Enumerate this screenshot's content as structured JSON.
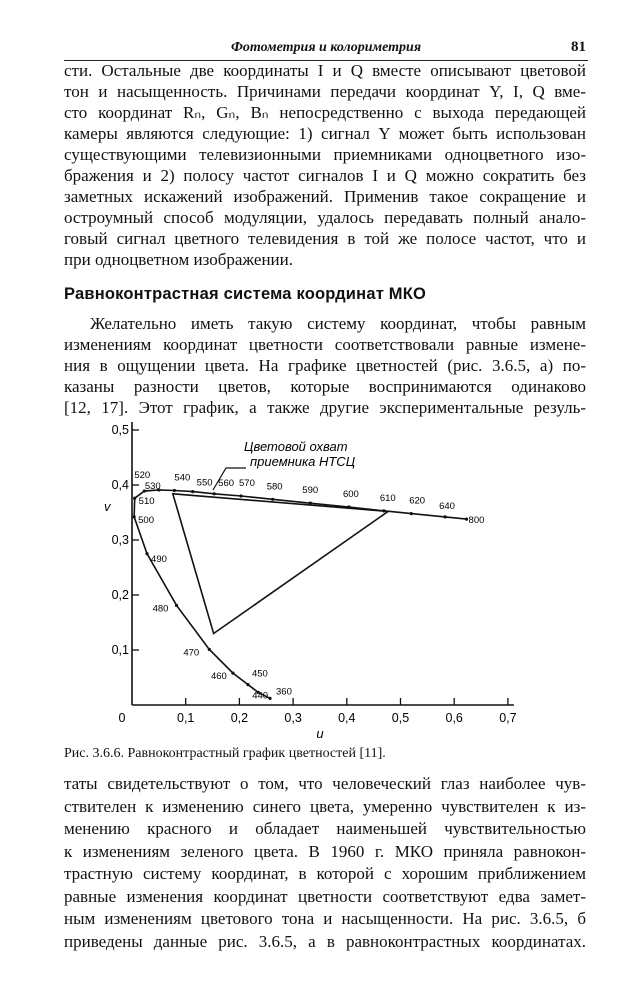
{
  "header": {
    "title": "Фотометрия и колориметрия",
    "page_number": "81"
  },
  "paragraph1": [
    "сти. Остальные две координаты I и Q вместе описывают цветовой",
    "тон и насыщенность. Причинами передачи координат Y, I, Q вме-",
    "сто координат Rₙ, Gₙ, Bₙ непосредственно с выхода передающей",
    "камеры являются следующие: 1) сигнал Y может быть использован",
    "существующими телевизионными приемниками одноцветного изо-",
    "бражения и 2) полосу частот сигналов I и Q можно сократить без",
    "заметных искажений изображений. Применив такое сокращение и",
    "остроумный способ модуляции, удалось передавать полный анало-",
    "говый сигнал цветного телевидения в той же полосе частот, что и",
    "при одноцветном изображении."
  ],
  "section_heading": "Равноконтрастная система координат МКО",
  "paragraph2": [
    "Желательно иметь такую систему координат, чтобы равным",
    "изменениям координат цветности соответствовали равные измене-",
    "ния в ощущении цвета. На графике цветностей (рис. 3.6.5, а) по-",
    "казаны разности цветов, которые воспринимаются одинаково",
    "[12, 17]. Этот график, а также другие экспериментальные резуль-"
  ],
  "chart_data": {
    "type": "line",
    "title": "",
    "xlabel": "u",
    "ylabel": "v",
    "xlim": [
      0,
      0.7
    ],
    "ylim": [
      0,
      0.5
    ],
    "x_ticks": [
      "0",
      "0,1",
      "0,2",
      "0,3",
      "0,4",
      "0,5",
      "0,6",
      "0,7"
    ],
    "y_ticks": [
      "0,1",
      "0,2",
      "0,3",
      "0,4",
      "0,5"
    ],
    "grid": false,
    "annotation": "Цветовой охват приемника НТСЦ",
    "spectral_locus": [
      {
        "nm": "360",
        "u": 0.257,
        "v": 0.012
      },
      {
        "nm": "440",
        "u": 0.235,
        "v": 0.023
      },
      {
        "nm": "450",
        "u": 0.216,
        "v": 0.037
      },
      {
        "nm": "460",
        "u": 0.188,
        "v": 0.058
      },
      {
        "nm": "470",
        "u": 0.144,
        "v": 0.101
      },
      {
        "nm": "480",
        "u": 0.083,
        "v": 0.181
      },
      {
        "nm": "490",
        "u": 0.028,
        "v": 0.275
      },
      {
        "nm": "500",
        "u": 0.004,
        "v": 0.342
      },
      {
        "nm": "510",
        "u": 0.005,
        "v": 0.376
      },
      {
        "nm": "520",
        "u": 0.023,
        "v": 0.389
      },
      {
        "nm": "530",
        "u": 0.05,
        "v": 0.391
      },
      {
        "nm": "540",
        "u": 0.079,
        "v": 0.39
      },
      {
        "nm": "550",
        "u": 0.113,
        "v": 0.388
      },
      {
        "nm": "560",
        "u": 0.153,
        "v": 0.384
      },
      {
        "nm": "570",
        "u": 0.203,
        "v": 0.38
      },
      {
        "nm": "580",
        "u": 0.262,
        "v": 0.374
      },
      {
        "nm": "590",
        "u": 0.332,
        "v": 0.367
      },
      {
        "nm": "600",
        "u": 0.404,
        "v": 0.36
      },
      {
        "nm": "610",
        "u": 0.469,
        "v": 0.353
      },
      {
        "nm": "620",
        "u": 0.52,
        "v": 0.348
      },
      {
        "nm": "640",
        "u": 0.583,
        "v": 0.342
      },
      {
        "nm": "800",
        "u": 0.623,
        "v": 0.338
      }
    ],
    "ntsc_triangle": [
      {
        "u": 0.477,
        "v": 0.352
      },
      {
        "u": 0.076,
        "v": 0.384
      },
      {
        "u": 0.152,
        "v": 0.13
      }
    ]
  },
  "figure_caption": "Рис. 3.6.6. Равноконтрастный график цветностей [11].",
  "paragraph3": [
    "таты свидетельствуют о том, что человеческий глаз наиболее чув-",
    "ствителен к изменению синего цвета, умеренно чувствителен к из-",
    "менению красного и обладает наименьшей чувствительностью",
    "к изменениям зеленого цвета. В 1960 г. МКО приняла равнокон-",
    "трастную систему координат, в которой с хорошим приближением",
    "равные изменения координат цветности соответствуют едва замет-",
    "ным изменениям цветового тона и насыщенности. На рис. 3.6.5, б",
    "приведены данные рис. 3.6.5, а в равноконтрастных координатах."
  ]
}
